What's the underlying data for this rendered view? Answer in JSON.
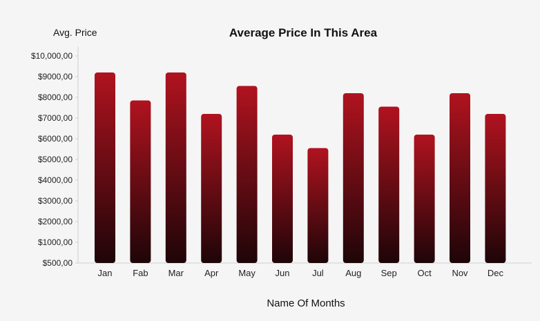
{
  "chart_data": {
    "type": "bar",
    "title": "Average Price In This Area",
    "ylabel": "Avg. Price",
    "xlabel": "Name Of Months",
    "categories": [
      "Jan",
      "Fab",
      "Mar",
      "Apr",
      "May",
      "Jun",
      "Jul",
      "Aug",
      "Sep",
      "Oct",
      "Nov",
      "Dec"
    ],
    "values": [
      9200,
      7850,
      9200,
      7200,
      8550,
      6200,
      5550,
      8200,
      7550,
      6200,
      8200,
      7200
    ],
    "y_ticks": [
      "$500,00",
      "$1000,00",
      "$2000,00",
      "$3000,00",
      "$4000,00",
      "$5000,00",
      "$6000,00",
      "$7000,00",
      "$8000,00",
      "$9000,00",
      "$10,000,00"
    ],
    "grid": false,
    "legend": "none",
    "colors": {
      "bar_top": "#b0131f",
      "bar_bottom": "#1e0508",
      "axis": "#cfcfcf",
      "background": "#f5f5f5"
    }
  }
}
